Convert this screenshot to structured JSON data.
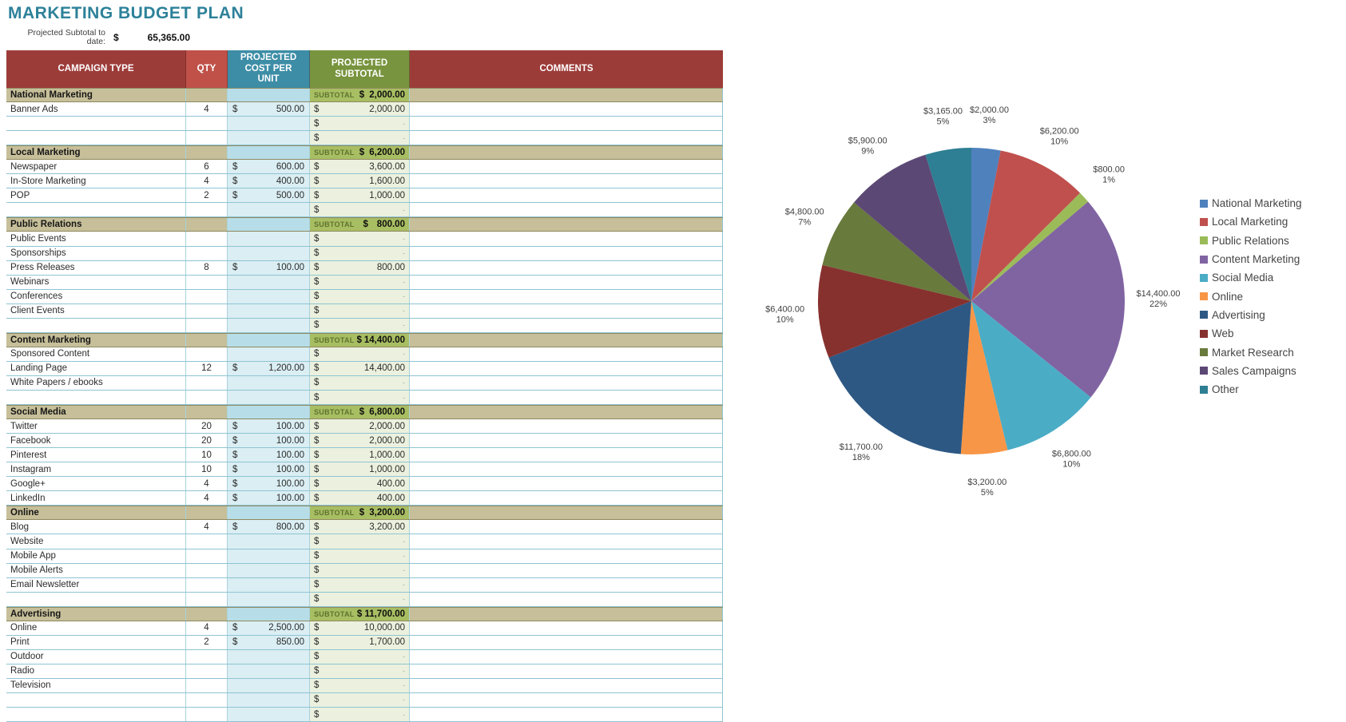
{
  "title": "MARKETING BUDGET PLAN",
  "summary": {
    "label": "Projected Subtotal to date:",
    "currency": "$",
    "value": "65,365.00"
  },
  "table": {
    "columns": [
      "CAMPAIGN TYPE",
      "QTY",
      "PROJECTED COST PER UNIT",
      "PROJECTED SUBTOTAL",
      "COMMENTS"
    ],
    "subtotal_label": "SUBTOTAL",
    "currency": "$",
    "empty_placeholder": "-",
    "sections": [
      {
        "name": "National Marketing",
        "subtotal": "2,000.00",
        "rows": [
          {
            "name": "Banner Ads",
            "qty": "4",
            "cost": "500.00",
            "subtotal": "2,000.00"
          },
          {
            "name": "",
            "qty": "",
            "cost": "",
            "subtotal": ""
          },
          {
            "name": "",
            "qty": "",
            "cost": "",
            "subtotal": ""
          }
        ]
      },
      {
        "name": "Local Marketing",
        "subtotal": "6,200.00",
        "rows": [
          {
            "name": "Newspaper",
            "qty": "6",
            "cost": "600.00",
            "subtotal": "3,600.00"
          },
          {
            "name": "In-Store Marketing",
            "qty": "4",
            "cost": "400.00",
            "subtotal": "1,600.00"
          },
          {
            "name": "POP",
            "qty": "2",
            "cost": "500.00",
            "subtotal": "1,000.00"
          },
          {
            "name": "",
            "qty": "",
            "cost": "",
            "subtotal": ""
          }
        ]
      },
      {
        "name": "Public Relations",
        "subtotal": "800.00",
        "rows": [
          {
            "name": "Public Events",
            "qty": "",
            "cost": "",
            "subtotal": ""
          },
          {
            "name": "Sponsorships",
            "qty": "",
            "cost": "",
            "subtotal": ""
          },
          {
            "name": "Press Releases",
            "qty": "8",
            "cost": "100.00",
            "subtotal": "800.00"
          },
          {
            "name": "Webinars",
            "qty": "",
            "cost": "",
            "subtotal": ""
          },
          {
            "name": "Conferences",
            "qty": "",
            "cost": "",
            "subtotal": ""
          },
          {
            "name": "Client Events",
            "qty": "",
            "cost": "",
            "subtotal": ""
          },
          {
            "name": "",
            "qty": "",
            "cost": "",
            "subtotal": ""
          }
        ]
      },
      {
        "name": "Content Marketing",
        "subtotal": "14,400.00",
        "rows": [
          {
            "name": "Sponsored Content",
            "qty": "",
            "cost": "",
            "subtotal": ""
          },
          {
            "name": "Landing Page",
            "qty": "12",
            "cost": "1,200.00",
            "subtotal": "14,400.00"
          },
          {
            "name": "White Papers / ebooks",
            "qty": "",
            "cost": "",
            "subtotal": ""
          },
          {
            "name": "",
            "qty": "",
            "cost": "",
            "subtotal": ""
          }
        ]
      },
      {
        "name": "Social Media",
        "subtotal": "6,800.00",
        "rows": [
          {
            "name": "Twitter",
            "qty": "20",
            "cost": "100.00",
            "subtotal": "2,000.00"
          },
          {
            "name": "Facebook",
            "qty": "20",
            "cost": "100.00",
            "subtotal": "2,000.00"
          },
          {
            "name": "Pinterest",
            "qty": "10",
            "cost": "100.00",
            "subtotal": "1,000.00"
          },
          {
            "name": "Instagram",
            "qty": "10",
            "cost": "100.00",
            "subtotal": "1,000.00"
          },
          {
            "name": "Google+",
            "qty": "4",
            "cost": "100.00",
            "subtotal": "400.00"
          },
          {
            "name": "LinkedIn",
            "qty": "4",
            "cost": "100.00",
            "subtotal": "400.00"
          }
        ]
      },
      {
        "name": "Online",
        "subtotal": "3,200.00",
        "rows": [
          {
            "name": "Blog",
            "qty": "4",
            "cost": "800.00",
            "subtotal": "3,200.00"
          },
          {
            "name": "Website",
            "qty": "",
            "cost": "",
            "subtotal": ""
          },
          {
            "name": "Mobile App",
            "qty": "",
            "cost": "",
            "subtotal": ""
          },
          {
            "name": "Mobile Alerts",
            "qty": "",
            "cost": "",
            "subtotal": ""
          },
          {
            "name": "Email Newsletter",
            "qty": "",
            "cost": "",
            "subtotal": ""
          },
          {
            "name": "",
            "qty": "",
            "cost": "",
            "subtotal": ""
          }
        ]
      },
      {
        "name": "Advertising",
        "subtotal": "11,700.00",
        "rows": [
          {
            "name": "Online",
            "qty": "4",
            "cost": "2,500.00",
            "subtotal": "10,000.00"
          },
          {
            "name": "Print",
            "qty": "2",
            "cost": "850.00",
            "subtotal": "1,700.00"
          },
          {
            "name": "Outdoor",
            "qty": "",
            "cost": "",
            "subtotal": ""
          },
          {
            "name": "Radio",
            "qty": "",
            "cost": "",
            "subtotal": ""
          },
          {
            "name": "Television",
            "qty": "",
            "cost": "",
            "subtotal": ""
          },
          {
            "name": "",
            "qty": "",
            "cost": "",
            "subtotal": ""
          },
          {
            "name": "",
            "qty": "",
            "cost": "",
            "subtotal": ""
          }
        ]
      }
    ]
  },
  "chart_data": {
    "type": "pie",
    "title": "",
    "legend_position": "right",
    "total": 65365,
    "slices": [
      {
        "label": "National Marketing",
        "value": 2000,
        "value_label": "$2,000.00",
        "pct_label": "3%",
        "color": "#4F81BD"
      },
      {
        "label": "Local Marketing",
        "value": 6200,
        "value_label": "$6,200.00",
        "pct_label": "10%",
        "color": "#C0504D"
      },
      {
        "label": "Public Relations",
        "value": 800,
        "value_label": "$800.00",
        "pct_label": "1%",
        "color": "#9BBB59"
      },
      {
        "label": "Content Marketing",
        "value": 14400,
        "value_label": "$14,400.00",
        "pct_label": "22%",
        "color": "#8064A2"
      },
      {
        "label": "Social Media",
        "value": 6800,
        "value_label": "$6,800.00",
        "pct_label": "10%",
        "color": "#4BACC6"
      },
      {
        "label": "Online",
        "value": 3200,
        "value_label": "$3,200.00",
        "pct_label": "5%",
        "color": "#F79646"
      },
      {
        "label": "Advertising",
        "value": 11700,
        "value_label": "$11,700.00",
        "pct_label": "18%",
        "color": "#2D5884"
      },
      {
        "label": "Web",
        "value": 6400,
        "value_label": "$6,400.00",
        "pct_label": "10%",
        "color": "#87312F"
      },
      {
        "label": "Market Research",
        "value": 4800,
        "value_label": "$4,800.00",
        "pct_label": "7%",
        "color": "#687A3C"
      },
      {
        "label": "Sales Campaigns",
        "value": 5900,
        "value_label": "$5,900.00",
        "pct_label": "9%",
        "color": "#5C4875"
      },
      {
        "label": "Other",
        "value": 3165,
        "value_label": "$3,165.00",
        "pct_label": "5%",
        "color": "#2E7F93"
      }
    ]
  }
}
